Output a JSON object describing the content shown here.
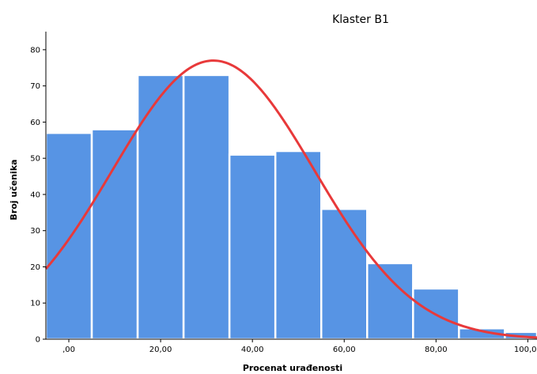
{
  "chart_data": {
    "type": "bar",
    "title": "Klaster B1",
    "xlabel": "Procenat urađenosti",
    "ylabel": "Broj učenika",
    "bar_color": "#5794e4",
    "curve_color": "#e8393a",
    "xlim": [
      -5,
      102
    ],
    "ylim": [
      0,
      85
    ],
    "bin_width": 10,
    "bins": [
      {
        "start": 0,
        "count": 57
      },
      {
        "start": 10,
        "count": 58
      },
      {
        "start": 20,
        "count": 73
      },
      {
        "start": 30,
        "count": 73
      },
      {
        "start": 40,
        "count": 51
      },
      {
        "start": 50,
        "count": 52
      },
      {
        "start": 60,
        "count": 36
      },
      {
        "start": 70,
        "count": 21
      },
      {
        "start": 80,
        "count": 14
      },
      {
        "start": 90,
        "count": 3
      },
      {
        "start": 100,
        "count": 2
      }
    ],
    "x_ticks": [
      {
        "value": 0,
        "label": ",00"
      },
      {
        "value": 20,
        "label": "20,00"
      },
      {
        "value": 40,
        "label": "40,00"
      },
      {
        "value": 60,
        "label": "60,00"
      },
      {
        "value": 80,
        "label": "80,00"
      },
      {
        "value": 100,
        "label": "100,00"
      }
    ],
    "y_ticks": [
      {
        "value": 0,
        "label": "0"
      },
      {
        "value": 10,
        "label": "10"
      },
      {
        "value": 20,
        "label": "20"
      },
      {
        "value": 30,
        "label": "30"
      },
      {
        "value": 40,
        "label": "40"
      },
      {
        "value": 50,
        "label": "50"
      },
      {
        "value": 60,
        "label": "60"
      },
      {
        "value": 70,
        "label": "70"
      },
      {
        "value": 80,
        "label": "80"
      }
    ],
    "normal_curve": {
      "mean": 31.5,
      "sd": 22,
      "peak": 77
    }
  }
}
